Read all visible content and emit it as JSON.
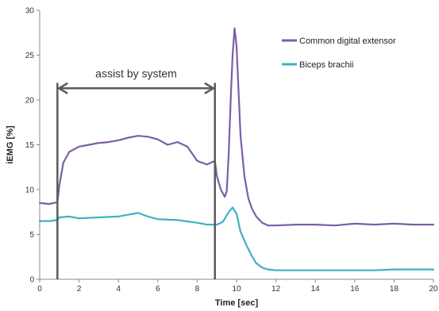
{
  "chart_data": {
    "type": "line",
    "title": "",
    "xlabel": "Time [sec]",
    "ylabel": "iEMG [%]",
    "xlim": [
      0,
      20
    ],
    "ylim": [
      0,
      30
    ],
    "x_ticks": [
      0,
      2,
      4,
      6,
      8,
      10,
      12,
      14,
      16,
      18,
      20
    ],
    "y_ticks": [
      0,
      5,
      10,
      15,
      20,
      25,
      30
    ],
    "grid": false,
    "legend_position": "top-right",
    "series": [
      {
        "name": "Common digital extensor",
        "color": "#7b5ea7",
        "x": [
          0,
          0.5,
          0.9,
          1.0,
          1.2,
          1.5,
          2,
          2.5,
          3,
          3.5,
          4,
          4.5,
          5,
          5.5,
          6,
          6.5,
          7,
          7.5,
          8,
          8.5,
          8.9,
          9.0,
          9.2,
          9.4,
          9.5,
          9.6,
          9.7,
          9.8,
          9.9,
          10.0,
          10.1,
          10.2,
          10.4,
          10.6,
          10.8,
          11.0,
          11.3,
          11.6,
          12,
          13,
          14,
          15,
          16,
          17,
          18,
          19,
          20
        ],
        "y": [
          8.5,
          8.4,
          8.6,
          10.5,
          13.0,
          14.2,
          14.8,
          15.0,
          15.2,
          15.3,
          15.5,
          15.8,
          16.0,
          15.9,
          15.6,
          15.0,
          15.3,
          14.8,
          13.2,
          12.8,
          13.2,
          11.5,
          10.0,
          9.2,
          9.8,
          14.0,
          20.0,
          25.0,
          28.0,
          26.0,
          21.0,
          16.0,
          11.5,
          9.0,
          7.8,
          7.0,
          6.3,
          6.0,
          6.0,
          6.1,
          6.1,
          6.0,
          6.2,
          6.1,
          6.2,
          6.1,
          6.1
        ]
      },
      {
        "name": "Biceps brachii",
        "color": "#3fb0c3",
        "x": [
          0,
          0.5,
          0.9,
          1.0,
          1.5,
          2,
          3,
          4,
          4.5,
          5,
          5.5,
          6,
          7,
          8,
          8.5,
          9.0,
          9.3,
          9.6,
          9.8,
          10.0,
          10.2,
          10.5,
          10.8,
          11.0,
          11.3,
          11.6,
          12,
          13,
          14,
          15,
          16,
          17,
          18,
          19,
          20
        ],
        "y": [
          6.5,
          6.5,
          6.6,
          6.9,
          7.0,
          6.8,
          6.9,
          7.0,
          7.2,
          7.4,
          7.0,
          6.7,
          6.6,
          6.3,
          6.1,
          6.1,
          6.4,
          7.5,
          8.0,
          7.3,
          5.3,
          3.8,
          2.5,
          1.8,
          1.3,
          1.1,
          1.0,
          1.0,
          1.0,
          1.0,
          1.0,
          1.0,
          1.1,
          1.1,
          1.1
        ]
      }
    ],
    "annotation": {
      "text": "assist by system",
      "x_start": 0.9,
      "x_end": 8.9,
      "y_arrow": 21.3
    }
  },
  "colors": {
    "annotation": "#5a5a5a",
    "axis": "#888888"
  }
}
